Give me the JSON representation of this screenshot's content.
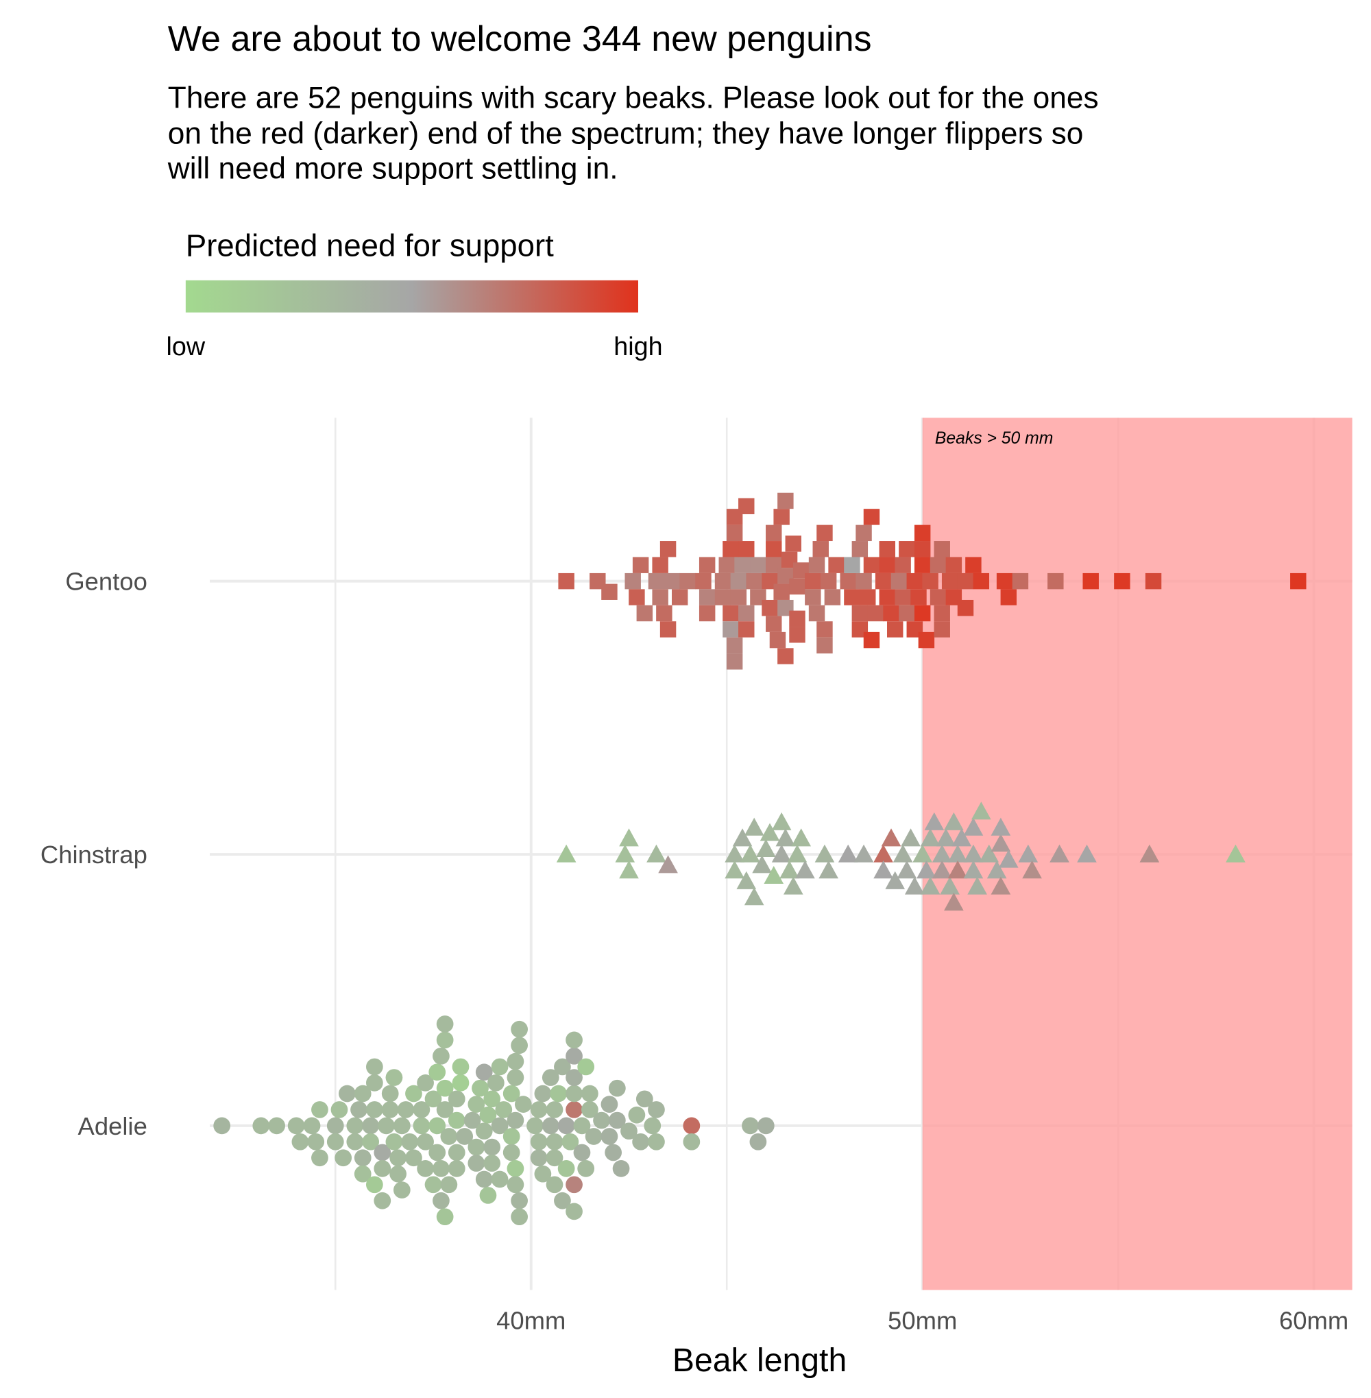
{
  "chart_data": {
    "type": "scatter",
    "title": "We are about to welcome 344 new penguins",
    "subtitle": [
      "There are 52 penguins with scary beaks. Please look out for the ones",
      "on the red (darker) end of the spectrum; they have longer flippers so",
      "will need more support settling in."
    ],
    "legend": {
      "title": "Predicted need for support",
      "low": "low",
      "high": "high",
      "placement": "top-left",
      "colors": [
        "#a3d98f",
        "#a6a6a6",
        "#e0321c"
      ]
    },
    "xlabel": "Beak length",
    "ylabel": "",
    "xlim": [
      32,
      61
    ],
    "x_ticks": [
      {
        "value": 40,
        "label": "40mm"
      },
      {
        "value": 50,
        "label": "50mm"
      },
      {
        "value": 60,
        "label": "60mm"
      }
    ],
    "x_minor": [
      35,
      45,
      55
    ],
    "categories": [
      "Gentoo",
      "Chinstrap",
      "Adelie"
    ],
    "highlight": {
      "from": 50,
      "to": 61,
      "label": "Beaks > 50 mm",
      "color": "#ff9c9c"
    },
    "series": [
      {
        "name": "Gentoo",
        "shape": "square",
        "beak_length": [
          46.1,
          50.0,
          48.7,
          50.0,
          47.6,
          46.5,
          45.4,
          46.7,
          43.3,
          46.8,
          40.9,
          49.0,
          45.5,
          48.4,
          45.8,
          49.3,
          42.0,
          49.2,
          46.2,
          48.7,
          50.2,
          45.1,
          46.5,
          46.3,
          42.9,
          46.1,
          44.5,
          47.8,
          48.2,
          50.0,
          47.3,
          42.8,
          45.1,
          59.6,
          49.1,
          48.4,
          42.6,
          44.4,
          44.0,
          48.7,
          42.7,
          49.6,
          45.3,
          49.6,
          50.5,
          43.6,
          45.5,
          50.5,
          44.9,
          45.2,
          46.6,
          48.5,
          45.1,
          50.1,
          46.5,
          45.0,
          43.8,
          45.5,
          43.2,
          50.4,
          45.3,
          46.2,
          45.7,
          54.3,
          45.8,
          49.8,
          46.2,
          49.5,
          43.5,
          50.7,
          47.7,
          46.4,
          48.2,
          46.5,
          46.4,
          48.6,
          47.5,
          51.1,
          45.2,
          45.2,
          49.1,
          52.5,
          47.4,
          50.0,
          44.9,
          50.8,
          43.4,
          51.3,
          47.5,
          52.1,
          47.5,
          52.2,
          45.5,
          49.5,
          44.5,
          50.8,
          49.4,
          46.9,
          48.4,
          51.1,
          48.5,
          55.9,
          47.2,
          49.1,
          47.3,
          46.8,
          41.7,
          53.4,
          43.3,
          48.1,
          50.5,
          49.8,
          43.5,
          51.5,
          46.2,
          55.1,
          44.5,
          48.8,
          47.2,
          46.8,
          50.4,
          45.2,
          49.9
        ],
        "need": [
          0.8,
          0.95,
          0.85,
          0.97,
          0.75,
          0.7,
          0.6,
          0.8,
          0.7,
          0.75,
          0.8,
          0.85,
          0.65,
          0.8,
          0.7,
          0.85,
          0.75,
          0.9,
          0.7,
          0.95,
          0.85,
          0.8,
          0.6,
          0.75,
          0.7,
          0.8,
          0.65,
          0.8,
          0.85,
          0.9,
          0.7,
          0.75,
          0.85,
          0.98,
          0.9,
          0.7,
          0.65,
          0.75,
          0.7,
          0.9,
          0.8,
          0.75,
          0.6,
          0.85,
          0.8,
          0.65,
          0.85,
          0.75,
          0.7,
          0.75,
          0.8,
          0.7,
          0.55,
          0.95,
          0.8,
          0.7,
          0.75,
          0.8,
          0.65,
          0.8,
          0.7,
          0.85,
          0.7,
          0.97,
          0.6,
          0.9,
          0.75,
          0.8,
          0.8,
          0.85,
          0.7,
          0.75,
          0.5,
          0.7,
          0.8,
          0.85,
          0.75,
          0.85,
          0.65,
          0.8,
          0.9,
          0.75,
          0.75,
          0.95,
          0.7,
          0.9,
          0.75,
          0.95,
          0.8,
          0.95,
          0.7,
          0.95,
          0.8,
          0.8,
          0.75,
          0.85,
          0.7,
          0.75,
          0.85,
          0.9,
          0.7,
          0.9,
          0.8,
          0.85,
          0.7,
          0.8,
          0.75,
          0.75,
          0.8,
          0.75,
          0.8,
          0.9,
          0.8,
          0.95,
          0.75,
          0.97,
          0.75,
          0.8,
          0.7,
          0.8,
          0.75,
          0.65,
          0.9
        ]
      },
      {
        "name": "Chinstrap",
        "shape": "triangle",
        "beak_length": [
          46.5,
          50.0,
          51.3,
          45.4,
          52.7,
          45.2,
          46.1,
          51.3,
          46.0,
          51.3,
          46.6,
          51.7,
          47.0,
          52.0,
          45.9,
          50.5,
          50.3,
          58.0,
          46.4,
          49.2,
          42.4,
          48.5,
          43.2,
          50.6,
          46.7,
          52.0,
          50.5,
          49.5,
          46.4,
          52.8,
          40.9,
          54.2,
          42.5,
          51.0,
          49.7,
          47.5,
          47.6,
          52.0,
          46.9,
          53.5,
          49.0,
          46.2,
          50.9,
          45.5,
          50.9,
          50.8,
          50.1,
          49.0,
          51.5,
          49.8,
          48.1,
          51.4,
          45.7,
          50.7,
          42.5,
          52.2,
          45.2,
          49.3,
          50.2,
          45.6,
          51.9,
          46.8,
          45.7,
          55.8,
          43.5,
          49.6,
          50.8,
          50.2
        ],
        "need": [
          0.4,
          0.3,
          0.45,
          0.4,
          0.5,
          0.35,
          0.3,
          0.45,
          0.35,
          0.5,
          0.3,
          0.4,
          0.45,
          0.55,
          0.4,
          0.45,
          0.5,
          0.2,
          0.45,
          0.7,
          0.25,
          0.45,
          0.3,
          0.45,
          0.35,
          0.5,
          0.55,
          0.4,
          0.3,
          0.6,
          0.2,
          0.5,
          0.25,
          0.5,
          0.4,
          0.35,
          0.4,
          0.6,
          0.3,
          0.55,
          0.75,
          0.2,
          0.45,
          0.35,
          0.65,
          0.4,
          0.5,
          0.5,
          0.3,
          0.45,
          0.5,
          0.4,
          0.35,
          0.4,
          0.25,
          0.5,
          0.3,
          0.45,
          0.4,
          0.3,
          0.45,
          0.3,
          0.35,
          0.6,
          0.55,
          0.45,
          0.6,
          0.4
        ]
      },
      {
        "name": "Adelie",
        "shape": "circle",
        "beak_length": [
          39.1,
          39.5,
          40.3,
          36.7,
          39.3,
          38.9,
          39.2,
          34.1,
          42.0,
          37.8,
          37.8,
          41.1,
          38.6,
          34.6,
          36.6,
          38.7,
          42.5,
          34.4,
          46.0,
          37.8,
          37.7,
          35.9,
          38.2,
          38.8,
          35.3,
          40.6,
          40.5,
          37.9,
          40.5,
          39.5,
          37.2,
          39.5,
          40.9,
          36.4,
          39.2,
          38.8,
          42.2,
          37.6,
          39.8,
          36.5,
          40.8,
          36.0,
          44.1,
          37.0,
          39.6,
          41.1,
          37.5,
          36.0,
          42.3,
          39.6,
          40.1,
          35.0,
          42.0,
          34.5,
          41.4,
          39.0,
          40.6,
          36.5,
          37.6,
          35.7,
          41.3,
          37.6,
          41.1,
          36.4,
          41.6,
          35.5,
          41.1,
          35.9,
          41.8,
          33.5,
          39.7,
          39.6,
          45.8,
          35.5,
          42.8,
          40.9,
          37.2,
          36.2,
          42.1,
          34.6,
          42.9,
          36.7,
          35.1,
          37.3,
          41.3,
          36.3,
          36.9,
          38.3,
          38.9,
          35.7,
          41.1,
          34.0,
          39.6,
          36.2,
          40.8,
          38.1,
          40.3,
          33.1,
          43.2,
          35.0,
          41.0,
          37.7,
          37.8,
          37.9,
          39.7,
          38.6,
          38.2,
          38.1,
          43.2,
          38.1,
          45.6,
          39.7,
          42.2,
          39.6,
          42.7,
          38.6,
          37.3,
          35.7,
          41.1,
          36.2,
          37.7,
          40.2,
          41.4,
          35.2,
          40.6,
          38.8,
          41.5,
          39.0,
          44.1,
          38.5,
          43.1,
          36.8,
          37.5,
          38.1,
          41.1,
          35.6,
          40.2,
          37.0,
          39.7,
          40.2,
          40.6,
          32.1,
          40.7,
          37.3,
          39.0,
          39.2,
          36.6,
          36.0,
          37.8,
          36.0,
          41.5
        ],
        "need": [
          0.3,
          0.2,
          0.35,
          0.3,
          0.25,
          0.2,
          0.35,
          0.3,
          0.4,
          0.3,
          0.15,
          0.7,
          0.3,
          0.25,
          0.3,
          0.2,
          0.35,
          0.3,
          0.4,
          0.25,
          0.3,
          0.35,
          0.1,
          0.3,
          0.35,
          0.3,
          0.4,
          0.3,
          0.35,
          0.3,
          0.25,
          0.2,
          0.45,
          0.3,
          0.3,
          0.35,
          0.4,
          0.2,
          0.3,
          0.25,
          0.35,
          0.3,
          0.75,
          0.3,
          0.35,
          0.3,
          0.25,
          0.3,
          0.4,
          0.15,
          0.3,
          0.35,
          0.4,
          0.3,
          0.3,
          0.35,
          0.3,
          0.25,
          0.3,
          0.35,
          0.3,
          0.15,
          0.4,
          0.3,
          0.35,
          0.3,
          0.65,
          0.25,
          0.35,
          0.3,
          0.35,
          0.3,
          0.4,
          0.3,
          0.35,
          0.2,
          0.3,
          0.45,
          0.4,
          0.3,
          0.35,
          0.3,
          0.25,
          0.3,
          0.4,
          0.3,
          0.3,
          0.35,
          0.2,
          0.3,
          0.45,
          0.3,
          0.3,
          0.3,
          0.35,
          0.2,
          0.3,
          0.3,
          0.3,
          0.3,
          0.25,
          0.3,
          0.2,
          0.3,
          0.3,
          0.25,
          0.15,
          0.3,
          0.35,
          0.3,
          0.35,
          0.3,
          0.35,
          0.3,
          0.3,
          0.35,
          0.3,
          0.25,
          0.3,
          0.3,
          0.35,
          0.3,
          0.15,
          0.3,
          0.3,
          0.45,
          0.3,
          0.2,
          0.3,
          0.35,
          0.3,
          0.3,
          0.25,
          0.3,
          0.3,
          0.35,
          0.3,
          0.2,
          0.3,
          0.35,
          0.3,
          0.35,
          0.2,
          0.3,
          0.3,
          0.25,
          0.3,
          0.15,
          0.3,
          0.3,
          0.3,
          0.35
        ]
      }
    ]
  }
}
